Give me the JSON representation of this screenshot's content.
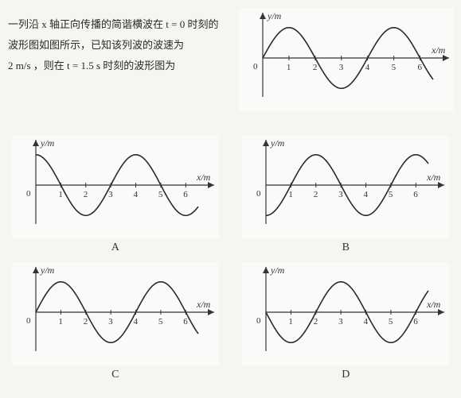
{
  "question": {
    "line1": "一列沿 x 轴正向传播的简谐横波在 t = 0 时刻的",
    "line2": "波形图如图所示，已知该列波的波速为",
    "line3": "2 m/s ，则在 t = 1.5 s 时刻的波形图为"
  },
  "axes": {
    "ylabel": "y/m",
    "xlabel": "x/m",
    "ticks": [
      "0",
      "1",
      "2",
      "3",
      "4",
      "5",
      "6"
    ],
    "xlim": [
      0,
      6.5
    ],
    "axis_color": "#333333",
    "curve_color": "#2a2a2a",
    "curve_width": 1.6,
    "background": "#fafaf8",
    "font_size_label": 12,
    "font_size_tick": 11
  },
  "charts": {
    "main": {
      "phase": 0,
      "sign": 1,
      "label": ""
    },
    "A": {
      "phase": 1,
      "sign": -1,
      "label": "A"
    },
    "B": {
      "phase": 1,
      "sign": 1,
      "label": "B"
    },
    "C": {
      "phase": 0,
      "sign": 1,
      "label": "C"
    },
    "D": {
      "phase": 0,
      "sign": -1,
      "label": "D"
    }
  },
  "wave": {
    "wavelength": 4,
    "amplitude": 1
  }
}
